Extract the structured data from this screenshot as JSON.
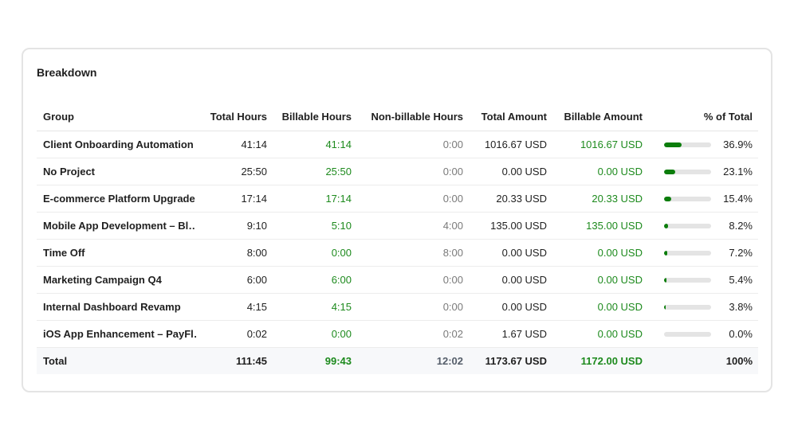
{
  "card": {
    "title": "Breakdown"
  },
  "table": {
    "headers": {
      "group": "Group",
      "total_hours": "Total Hours",
      "billable_hours": "Billable Hours",
      "non_billable_hours": "Non-billable Hours",
      "total_amount": "Total Amount",
      "billable_amount": "Billable Amount",
      "percent": "% of Total"
    },
    "rows": [
      {
        "group": "Client Onboarding Automation",
        "total_hours": "41:14",
        "billable_hours": "41:14",
        "non_billable_hours": "0:00",
        "total_amount": "1016.67 USD",
        "billable_amount": "1016.67 USD",
        "percent": {
          "value": 36.9,
          "label": "36.9%"
        }
      },
      {
        "group": "No Project",
        "total_hours": "25:50",
        "billable_hours": "25:50",
        "non_billable_hours": "0:00",
        "total_amount": "0.00 USD",
        "billable_amount": "0.00 USD",
        "percent": {
          "value": 23.1,
          "label": "23.1%"
        }
      },
      {
        "group": "E-commerce Platform Upgrade",
        "total_hours": "17:14",
        "billable_hours": "17:14",
        "non_billable_hours": "0:00",
        "total_amount": "20.33 USD",
        "billable_amount": "20.33 USD",
        "percent": {
          "value": 15.4,
          "label": "15.4%"
        }
      },
      {
        "group": "Mobile App Development – Bl…",
        "total_hours": "9:10",
        "billable_hours": "5:10",
        "non_billable_hours": "4:00",
        "total_amount": "135.00 USD",
        "billable_amount": "135.00 USD",
        "percent": {
          "value": 8.2,
          "label": "8.2%"
        }
      },
      {
        "group": "Time Off",
        "total_hours": "8:00",
        "billable_hours": "0:00",
        "non_billable_hours": "8:00",
        "total_amount": "0.00 USD",
        "billable_amount": "0.00 USD",
        "percent": {
          "value": 7.2,
          "label": "7.2%"
        }
      },
      {
        "group": "Marketing Campaign Q4",
        "total_hours": "6:00",
        "billable_hours": "6:00",
        "non_billable_hours": "0:00",
        "total_amount": "0.00 USD",
        "billable_amount": "0.00 USD",
        "percent": {
          "value": 5.4,
          "label": "5.4%"
        }
      },
      {
        "group": "Internal Dashboard Revamp",
        "total_hours": "4:15",
        "billable_hours": "4:15",
        "non_billable_hours": "0:00",
        "total_amount": "0.00 USD",
        "billable_amount": "0.00 USD",
        "percent": {
          "value": 3.8,
          "label": "3.8%"
        }
      },
      {
        "group": "iOS App Enhancement – PayFl…",
        "total_hours": "0:02",
        "billable_hours": "0:00",
        "non_billable_hours": "0:02",
        "total_amount": "1.67 USD",
        "billable_amount": "0.00 USD",
        "percent": {
          "value": 0.0,
          "label": "0.0%"
        }
      }
    ],
    "total": {
      "group": "Total",
      "total_hours": "111:45",
      "billable_hours": "99:43",
      "non_billable_hours": "12:02",
      "total_amount": "1173.67 USD",
      "billable_amount": "1172.00 USD",
      "percent": "100%"
    }
  }
}
